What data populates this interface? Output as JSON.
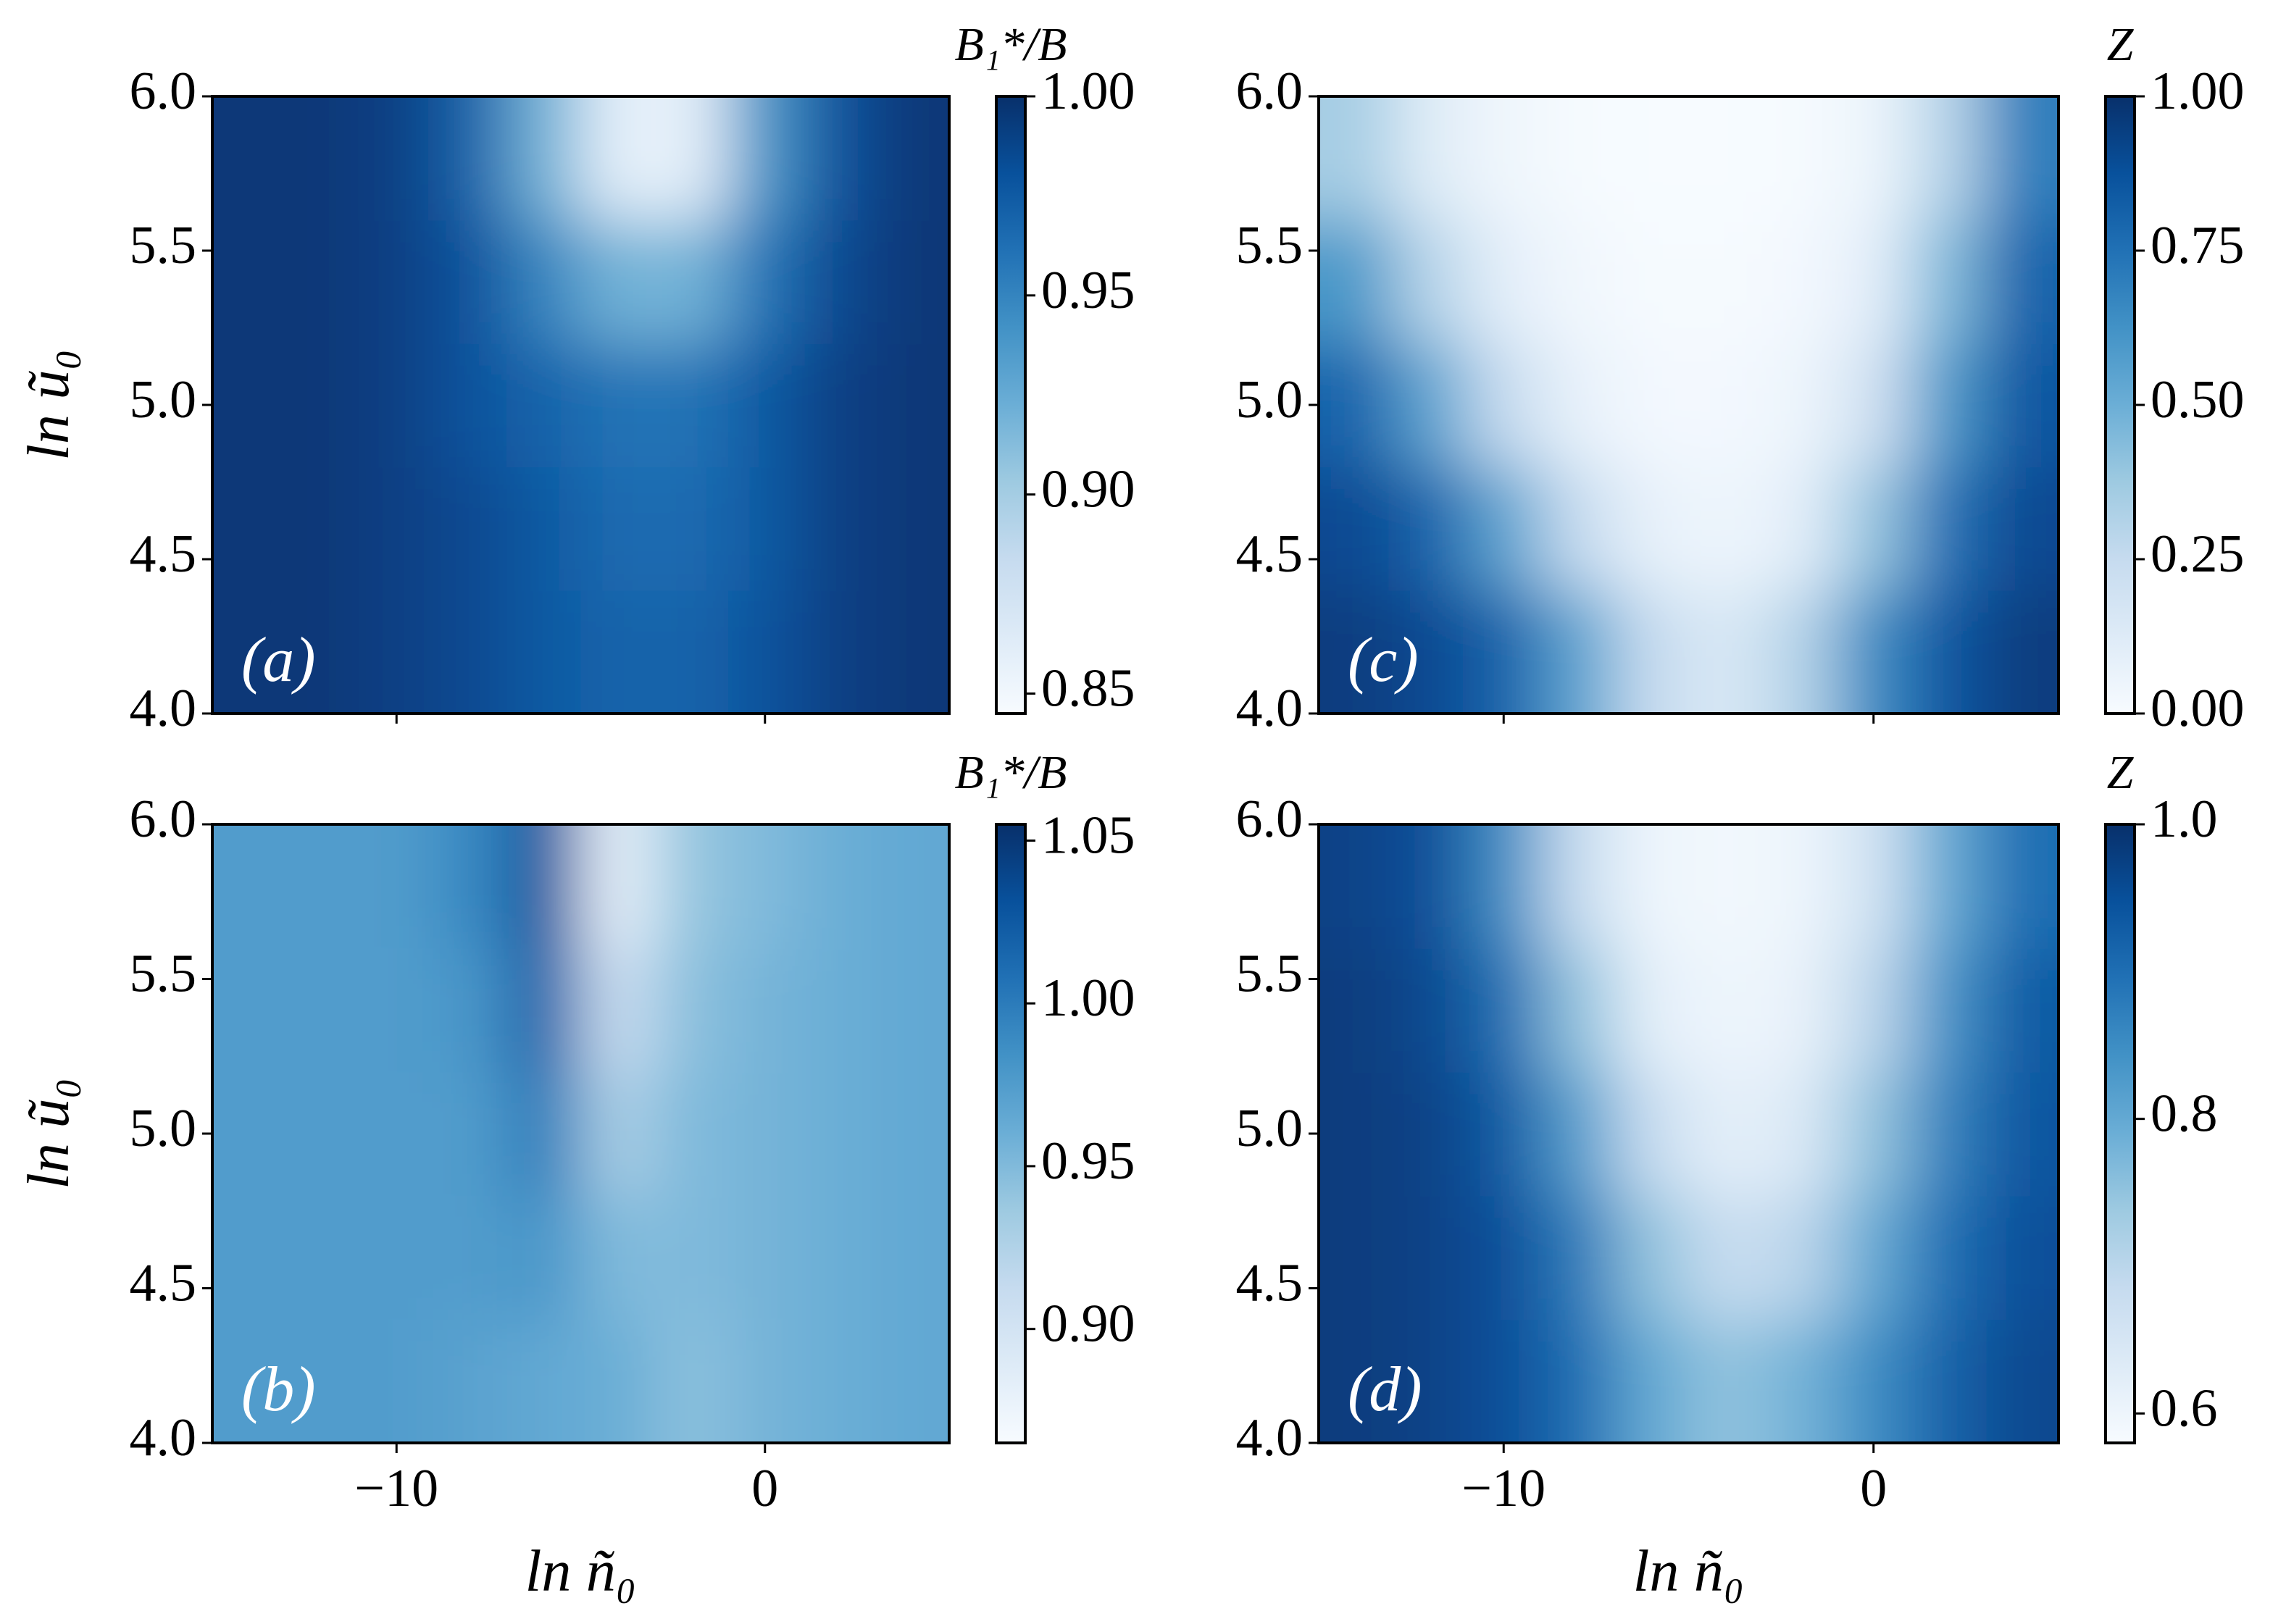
{
  "chart_data": [
    {
      "type": "heatmap",
      "panel_label": "(a)",
      "colorbar_label": "B₁*/B",
      "colormap": "Blues",
      "y_label": "ln ũ₀",
      "show_xtick_labels": false,
      "x": [
        -14,
        -12,
        -10,
        -8,
        -6,
        -4,
        -2,
        0,
        2,
        4
      ],
      "y": [
        4.2,
        4.6,
        5.0,
        5.4,
        5.8
      ],
      "z": [
        [
          0.995,
          0.995,
          0.99,
          0.985,
          0.975,
          0.97,
          0.97,
          0.98,
          0.99,
          0.995
        ],
        [
          0.995,
          0.995,
          0.99,
          0.985,
          0.975,
          0.965,
          0.965,
          0.975,
          0.99,
          0.995
        ],
        [
          0.995,
          0.995,
          0.99,
          0.98,
          0.97,
          0.96,
          0.96,
          0.975,
          0.99,
          0.995
        ],
        [
          0.995,
          0.995,
          0.99,
          0.98,
          0.95,
          0.92,
          0.92,
          0.96,
          0.985,
          0.995
        ],
        [
          0.995,
          0.995,
          0.99,
          0.97,
          0.92,
          0.86,
          0.86,
          0.94,
          0.98,
          0.995
        ]
      ],
      "xlim": [
        -15,
        5
      ],
      "ylim": [
        4,
        6
      ],
      "zlim": [
        0.845,
        1.0
      ],
      "xticks": [
        -10,
        0
      ],
      "yticks": [
        {
          "value": 4,
          "label": "4.0"
        },
        4.5,
        {
          "value": 5,
          "label": "5.0"
        },
        5.5,
        {
          "value": 6,
          "label": "6.0"
        }
      ],
      "zticks": [
        0.85,
        {
          "value": 0.9,
          "label": "0.90"
        },
        0.95,
        {
          "value": 1,
          "label": "1.00"
        }
      ]
    },
    {
      "type": "heatmap",
      "panel_label": "(b)",
      "colorbar_label": "B₁*/B",
      "colormap": "Blues",
      "y_label": "ln ũ₀",
      "x_label": "ln ñ₀",
      "x": [
        -14,
        -12,
        -10,
        -8,
        -6,
        -4,
        -2,
        0,
        2,
        4
      ],
      "y": [
        4.2,
        4.6,
        5.0,
        5.4,
        5.8
      ],
      "z": [
        [
          0.975,
          0.975,
          0.975,
          0.97,
          0.965,
          0.96,
          0.945,
          0.955,
          0.96,
          0.965
        ],
        [
          0.975,
          0.975,
          0.975,
          0.975,
          0.98,
          0.95,
          0.95,
          0.955,
          0.96,
          0.965
        ],
        [
          0.975,
          0.975,
          0.975,
          0.975,
          1.0,
          0.93,
          0.95,
          0.955,
          0.96,
          0.965
        ],
        [
          0.975,
          0.975,
          0.975,
          0.98,
          1.02,
          0.91,
          0.945,
          0.955,
          0.96,
          0.965
        ],
        [
          0.975,
          0.975,
          0.975,
          0.99,
          1.03,
          0.88,
          0.94,
          0.95,
          0.96,
          0.965
        ]
      ],
      "xlim": [
        -15,
        5
      ],
      "ylim": [
        4,
        6
      ],
      "zlim": [
        0.865,
        1.055
      ],
      "xticks": [
        {
          "value": -10,
          "label": "−10"
        },
        0
      ],
      "yticks": [
        {
          "value": 4,
          "label": "4.0"
        },
        4.5,
        {
          "value": 5,
          "label": "5.0"
        },
        5.5,
        {
          "value": 6,
          "label": "6.0"
        }
      ],
      "zticks": [
        {
          "value": 0.9,
          "label": "0.90"
        },
        0.95,
        {
          "value": 1,
          "label": "1.00"
        },
        1.05
      ]
    },
    {
      "type": "heatmap",
      "panel_label": "(c)",
      "colorbar_label": "Z",
      "colormap": "Blues",
      "show_xtick_labels": false,
      "x": [
        -14,
        -12,
        -10,
        -8,
        -6,
        -4,
        -2,
        0,
        2,
        4
      ],
      "y": [
        4.2,
        4.6,
        5.0,
        5.4,
        5.8
      ],
      "z": [
        [
          0.95,
          0.9,
          0.8,
          0.55,
          0.25,
          0.15,
          0.3,
          0.65,
          0.85,
          0.95
        ],
        [
          0.9,
          0.8,
          0.55,
          0.25,
          0.08,
          0.05,
          0.1,
          0.4,
          0.75,
          0.9
        ],
        [
          0.8,
          0.55,
          0.25,
          0.08,
          0.02,
          0.02,
          0.05,
          0.2,
          0.6,
          0.85
        ],
        [
          0.6,
          0.3,
          0.1,
          0.03,
          0.01,
          0.01,
          0.02,
          0.1,
          0.45,
          0.8
        ],
        [
          0.35,
          0.12,
          0.04,
          0.01,
          0,
          0,
          0.01,
          0.05,
          0.3,
          0.7
        ]
      ],
      "xlim": [
        -15,
        5
      ],
      "ylim": [
        4,
        6
      ],
      "zlim": [
        0,
        1
      ],
      "xticks": [
        -10,
        0
      ],
      "yticks": [
        {
          "value": 4,
          "label": "4.0"
        },
        4.5,
        {
          "value": 5,
          "label": "5.0"
        },
        5.5,
        {
          "value": 6,
          "label": "6.0"
        }
      ],
      "zticks": [
        {
          "value": 0,
          "label": "0.00"
        },
        0.25,
        {
          "value": 0.5,
          "label": "0.50"
        },
        0.75,
        {
          "value": 1,
          "label": "1.00"
        }
      ]
    },
    {
      "type": "heatmap",
      "panel_label": "(d)",
      "colorbar_label": "Z",
      "colormap": "Blues",
      "x_label": "ln ñ₀",
      "x": [
        -14,
        -12,
        -10,
        -8,
        -6,
        -4,
        -2,
        0,
        2,
        4
      ],
      "y": [
        4.2,
        4.6,
        5.0,
        5.4,
        5.8
      ],
      "z": [
        [
          0.98,
          0.97,
          0.95,
          0.9,
          0.8,
          0.75,
          0.78,
          0.85,
          0.92,
          0.96
        ],
        [
          0.98,
          0.97,
          0.95,
          0.88,
          0.75,
          0.68,
          0.7,
          0.8,
          0.9,
          0.95
        ],
        [
          0.98,
          0.97,
          0.93,
          0.82,
          0.68,
          0.62,
          0.64,
          0.75,
          0.87,
          0.94
        ],
        [
          0.98,
          0.96,
          0.9,
          0.75,
          0.62,
          0.6,
          0.61,
          0.7,
          0.84,
          0.93
        ],
        [
          0.97,
          0.95,
          0.85,
          0.68,
          0.6,
          0.59,
          0.6,
          0.66,
          0.8,
          0.9
        ]
      ],
      "xlim": [
        -15,
        5
      ],
      "ylim": [
        4,
        6
      ],
      "zlim": [
        0.58,
        1.0
      ],
      "xticks": [
        {
          "value": -10,
          "label": "−10"
        },
        0
      ],
      "yticks": [
        {
          "value": 4,
          "label": "4.0"
        },
        4.5,
        {
          "value": 5,
          "label": "5.0"
        },
        5.5,
        {
          "value": 6,
          "label": "6.0"
        }
      ],
      "zticks": [
        0.6,
        0.8,
        {
          "value": 1,
          "label": "1.0"
        }
      ]
    }
  ]
}
